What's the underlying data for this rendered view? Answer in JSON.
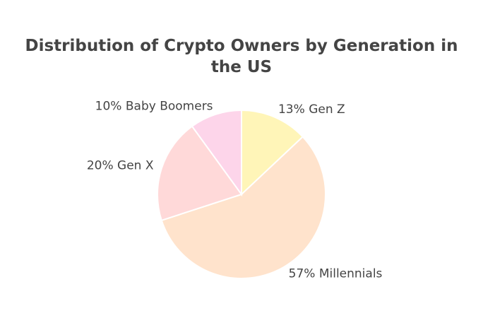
{
  "chart_data": {
    "type": "pie",
    "title": "Distribution of Crypto Owners by Generation in the US",
    "categories": [
      "Gen Z",
      "Millennials",
      "Gen X",
      "Baby Boomers"
    ],
    "values": [
      13,
      57,
      20,
      10
    ],
    "value_labels": [
      "13%",
      "57%",
      "20%",
      "10%"
    ],
    "colors": [
      "#fff5b8",
      "#ffe3cc",
      "#ffd9d9",
      "#fdd5ea"
    ]
  }
}
